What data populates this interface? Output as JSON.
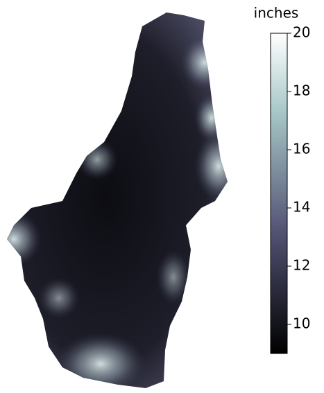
{
  "colorbar": {
    "label": "inches",
    "range": [
      9,
      20
    ],
    "ticks": [
      10,
      12,
      14,
      16,
      18,
      20
    ],
    "colormap": "bone"
  }
}
